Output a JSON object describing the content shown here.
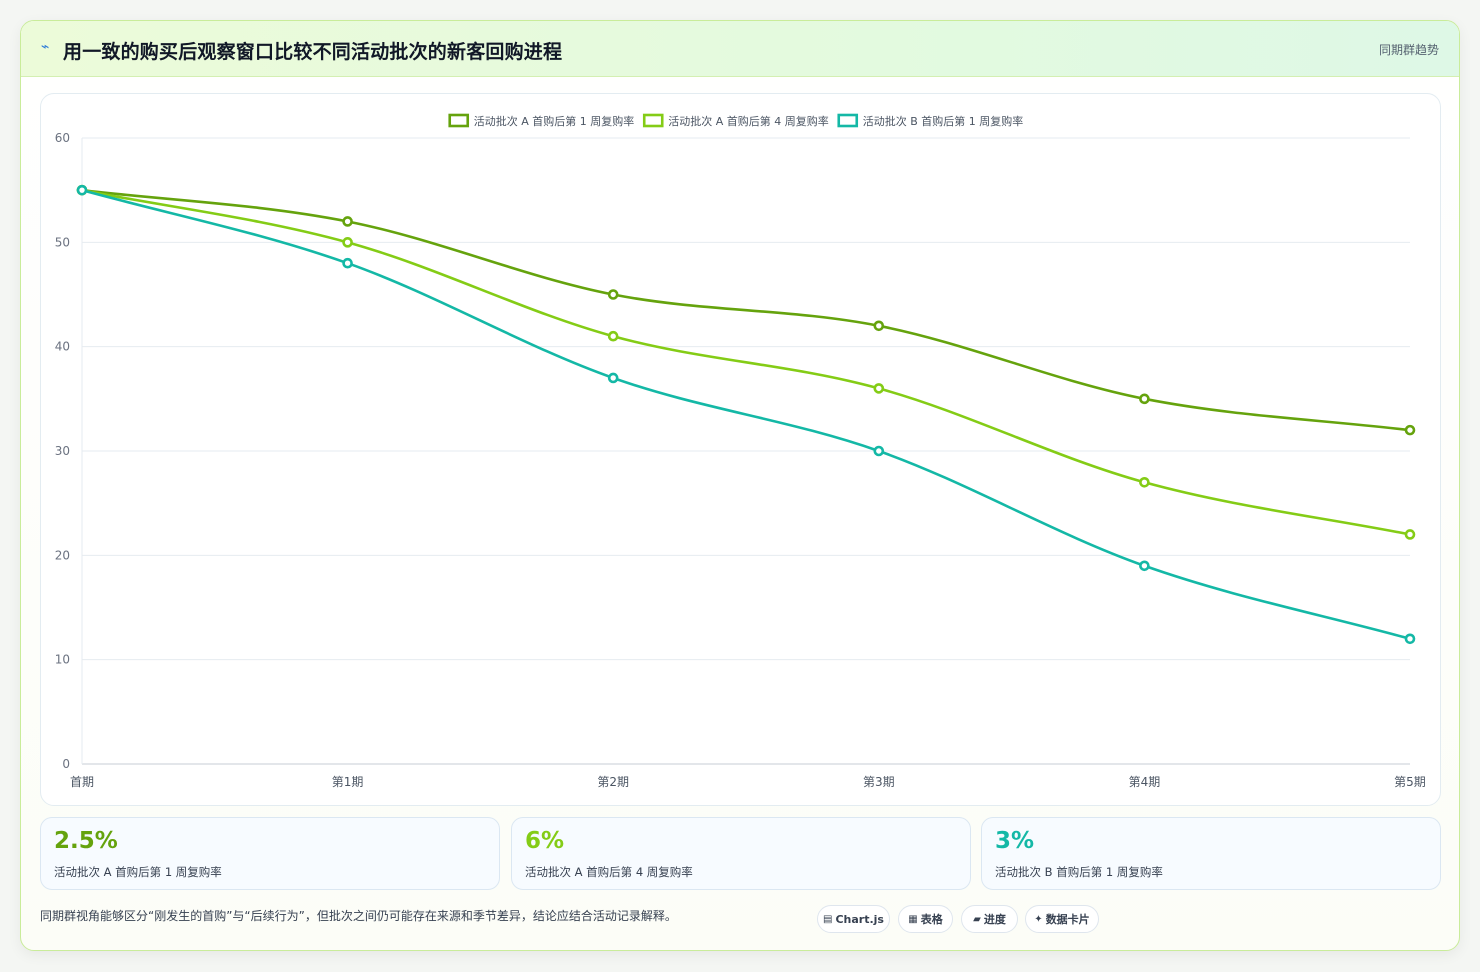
{
  "header": {
    "icon": "bolt-icon",
    "title": "用一致的购买后观察窗口比较不同活动批次的新客回购进程",
    "link": "同期群趋势"
  },
  "chart_data": {
    "type": "line",
    "x": [
      "首期",
      "第1期",
      "第2期",
      "第3期",
      "第4期",
      "第5期"
    ],
    "series": [
      {
        "name": "活动批次 A 首购后第 1 周复购率",
        "values": [
          55,
          52,
          45,
          42,
          35,
          32
        ],
        "color": "#65a30d"
      },
      {
        "name": "活动批次 A 首购后第 4 周复购率",
        "values": [
          55,
          50,
          41,
          36,
          27,
          22
        ],
        "color": "#84cc16"
      },
      {
        "name": "活动批次 B 首购后第 1 周复购率",
        "values": [
          55,
          48,
          37,
          30,
          19,
          12
        ],
        "color": "#14b8a6"
      }
    ],
    "ylim": [
      0,
      60
    ],
    "yticks": [
      0,
      10,
      20,
      30,
      40,
      50,
      60
    ],
    "legend": "top-center",
    "grid": true,
    "smooth": true
  },
  "stats": [
    {
      "value": "2.5%",
      "label": "活动批次 A 首购后第 1 周复购率",
      "color": "#65a30d"
    },
    {
      "value": "6%",
      "label": "活动批次 A 首购后第 4 周复购率",
      "color": "#84cc16"
    },
    {
      "value": "3%",
      "label": "活动批次 B 首购后第 1 周复购率",
      "color": "#14b8a6"
    }
  ],
  "footer": {
    "note": "同期群视角能够区分“刚发生的首购”与“后续行为”，但批次之间仍可能存在来源和季节差异，结论应结合活动记录解释。",
    "pills": [
      {
        "icon": "chart-icon",
        "label": "Chart.js"
      },
      {
        "icon": "table-icon",
        "label": "表格"
      },
      {
        "icon": "progress-icon",
        "label": "进度"
      },
      {
        "icon": "card-icon",
        "label": "数据卡片"
      }
    ]
  }
}
